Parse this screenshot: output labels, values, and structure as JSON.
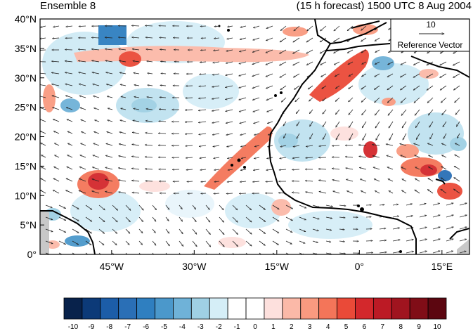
{
  "header": {
    "left_title": "Ensemble 8",
    "right_title": "(15 h forecast) 1500 UTC 8 Aug 2004"
  },
  "map": {
    "lon_range": [
      -58,
      20
    ],
    "lat_range": [
      0,
      40
    ],
    "x_ticks": [
      {
        "lon": -45,
        "label": "45°W"
      },
      {
        "lon": -30,
        "label": "30°W"
      },
      {
        "lon": -15,
        "label": "15°W"
      },
      {
        "lon": 0,
        "label": "0°"
      },
      {
        "lon": 15,
        "label": "15°E"
      }
    ],
    "y_ticks": [
      {
        "lat": 0,
        "label": "0°"
      },
      {
        "lat": 5,
        "label": "5°N"
      },
      {
        "lat": 10,
        "label": "10°N"
      },
      {
        "lat": 15,
        "label": "15°N"
      },
      {
        "lat": 20,
        "label": "20°N"
      },
      {
        "lat": 25,
        "label": "25°N"
      },
      {
        "lat": 30,
        "label": "30°N"
      },
      {
        "lat": 35,
        "label": "35°N"
      },
      {
        "lat": 40,
        "label": "40°N"
      }
    ]
  },
  "reference_vector": {
    "magnitude": "10",
    "label": "Reference Vector"
  },
  "colorbar": {
    "colors": [
      "#08224b",
      "#0c3a78",
      "#1c5da8",
      "#2a6fb6",
      "#2f7fc0",
      "#4b98cb",
      "#6fb2d8",
      "#9fd0e4",
      "#d5eef7",
      "#ffffff",
      "#ffffff",
      "#fde0dd",
      "#fbb9a8",
      "#f99a80",
      "#f47559",
      "#ea4a38",
      "#d3282c",
      "#bc1a25",
      "#a0141f",
      "#800d17",
      "#5c0610"
    ],
    "labels": [
      "-10",
      "-9",
      "-8",
      "-7",
      "-6",
      "-5",
      "-4",
      "-3",
      "-2",
      "-1",
      "0",
      "1",
      "2",
      "3",
      "4",
      "5",
      "6",
      "7",
      "8",
      "9",
      "10"
    ]
  }
}
